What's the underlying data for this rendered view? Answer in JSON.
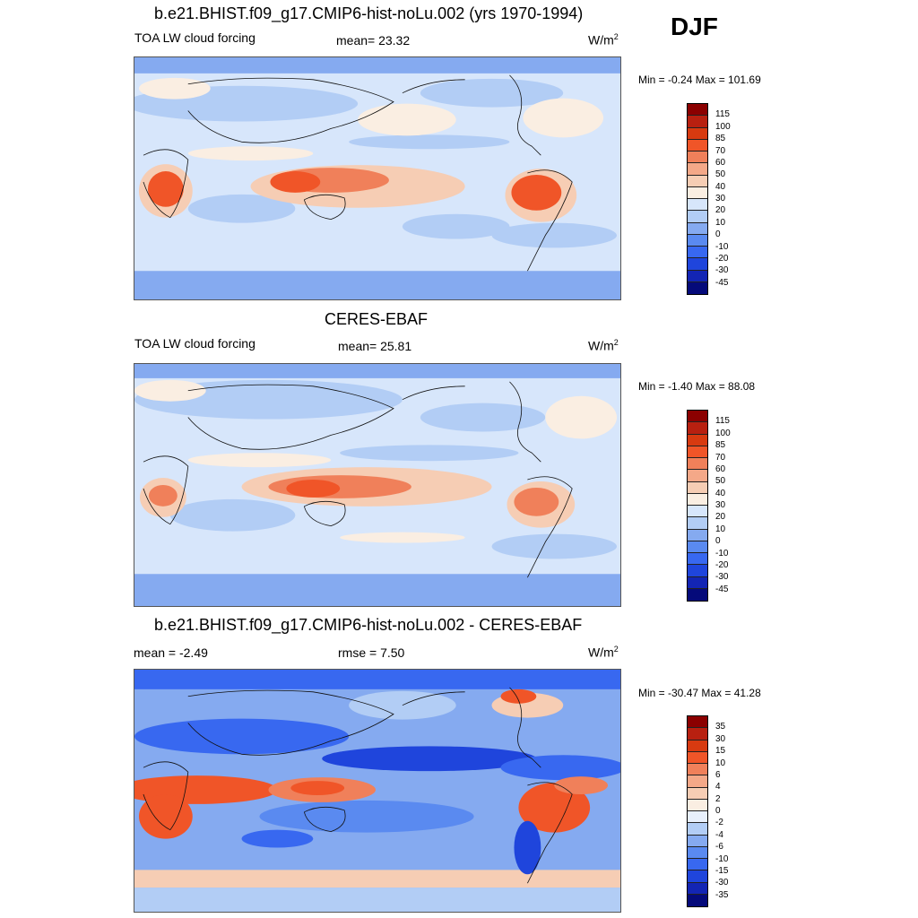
{
  "season": "DJF",
  "panels": [
    {
      "title": "b.e21.BHIST.f09_g17.CMIP6-hist-noLu.002 (yrs 1970-1994)",
      "left_label": "TOA LW cloud forcing",
      "center_label": "mean=  23.32",
      "units_base": "W/m",
      "units_exp": "2",
      "minmax": "Min =  -0.24 Max = 101.69",
      "colorbar": {
        "levels": [
          "115",
          "100",
          "85",
          "70",
          "60",
          "50",
          "40",
          "30",
          "20",
          "10",
          "0",
          "-10",
          "-20",
          "-30",
          "-45"
        ],
        "colors": [
          "#8b0000",
          "#b82010",
          "#d83a10",
          "#f05528",
          "#f0805a",
          "#f4a888",
          "#f6cdb4",
          "#faeee2",
          "#d7e6fb",
          "#b2cdf5",
          "#85aaf0",
          "#5a8af0",
          "#3868f0",
          "#1f45dc",
          "#1325b4",
          "#050a7a"
        ]
      }
    },
    {
      "title": "CERES-EBAF",
      "left_label": "TOA LW cloud forcing",
      "center_label": "mean=  25.81",
      "units_base": "W/m",
      "units_exp": "2",
      "minmax": "Min =  -1.40 Max =  88.08",
      "colorbar": {
        "levels": [
          "115",
          "100",
          "85",
          "70",
          "60",
          "50",
          "40",
          "30",
          "20",
          "10",
          "0",
          "-10",
          "-20",
          "-30",
          "-45"
        ],
        "colors": [
          "#8b0000",
          "#b82010",
          "#d83a10",
          "#f05528",
          "#f0805a",
          "#f4a888",
          "#f6cdb4",
          "#faeee2",
          "#d7e6fb",
          "#b2cdf5",
          "#85aaf0",
          "#5a8af0",
          "#3868f0",
          "#1f45dc",
          "#1325b4",
          "#050a7a"
        ]
      }
    },
    {
      "title": "b.e21.BHIST.f09_g17.CMIP6-hist-noLu.002 - CERES-EBAF",
      "left_label": "mean =  -2.49",
      "center_label": "rmse =   7.50",
      "units_base": "W/m",
      "units_exp": "2",
      "minmax": "Min = -30.47 Max =  41.28",
      "colorbar": {
        "levels": [
          "35",
          "30",
          "15",
          "10",
          "6",
          "4",
          "2",
          "0",
          "-2",
          "-4",
          "-6",
          "-10",
          "-15",
          "-30",
          "-35"
        ],
        "colors": [
          "#8b0000",
          "#b82010",
          "#d83a10",
          "#f05528",
          "#f0805a",
          "#f4a888",
          "#f6cdb4",
          "#faeee2",
          "#e8f0fc",
          "#b2cdf5",
          "#85aaf0",
          "#5a8af0",
          "#3868f0",
          "#1f45dc",
          "#1325b4",
          "#050a7a"
        ]
      }
    }
  ]
}
